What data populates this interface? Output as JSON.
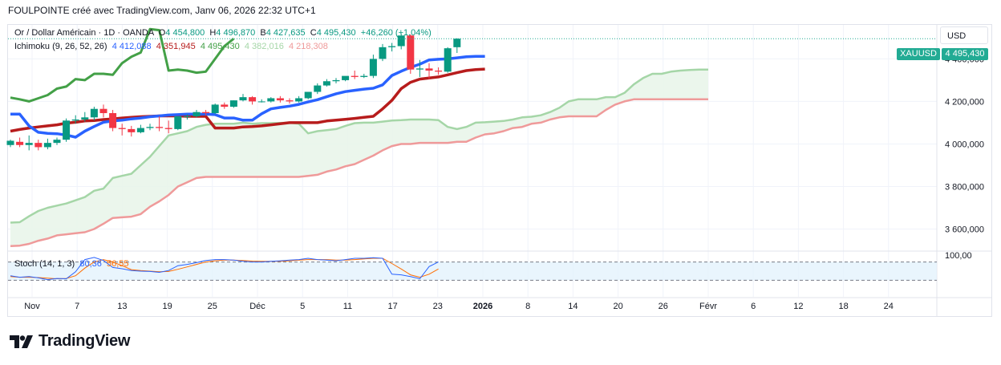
{
  "header": {
    "title": "FOULPOINTE créé avec TradingView.com, Janv 06, 2026 22:32 UTC+1"
  },
  "legend": {
    "symbol": "Or / Dollar Américain · 1D · OANDA",
    "o_label": "O",
    "o_value": "4 454,800",
    "h_label": "H",
    "h_value": "4 496,870",
    "l_label": "B",
    "l_value": "4 427,635",
    "c_label": "C",
    "c_value": "4 495,430",
    "change": "+46,260 (+1,04%)",
    "ichimoku_label": "Ichimoku (9, 26, 52, 26)",
    "ichimoku_values": [
      "4 412,088",
      "4 351,945",
      "4 495,430",
      "4 382,016",
      "4 218,308"
    ],
    "stoch_label": "Stoch (14, 1, 3)",
    "stoch_values": [
      "80,36",
      "56,55"
    ]
  },
  "price_scale": {
    "currency": "USD",
    "symbol_tag": "XAUUSD",
    "last_price": "4 495,430",
    "ticks": [
      "4 400,000",
      "4 200,000",
      "4 000,000",
      "3 800,000",
      "3 600,000"
    ],
    "stoch_tick": "100,00"
  },
  "time_axis": {
    "labels": [
      "Nov",
      "7",
      "13",
      "19",
      "25",
      "Déc",
      "5",
      "11",
      "17",
      "23",
      "2026",
      "8",
      "14",
      "20",
      "26",
      "Févr",
      "6",
      "12",
      "18",
      "24"
    ]
  },
  "brand": {
    "name": "TradingView"
  },
  "colors": {
    "up": "#089981",
    "down": "#f23645",
    "conversion": "#2962ff",
    "base": "#b71c1c",
    "lagging": "#43a047",
    "span_a": "#a5d6a7",
    "span_b": "#ef9a9a",
    "cloud": "#e8f5e9",
    "stoch_k": "#2962ff",
    "stoch_d": "#ff6d00"
  },
  "chart_data": {
    "type": "candlestick",
    "ylim": [
      3500,
      4560
    ],
    "candles": [
      {
        "o": 3995,
        "h": 4020,
        "c": 4015,
        "l": 3985
      },
      {
        "o": 4010,
        "h": 4030,
        "c": 3995,
        "l": 3985
      },
      {
        "o": 3995,
        "h": 4040,
        "c": 4005,
        "l": 3970
      },
      {
        "o": 4005,
        "h": 4020,
        "c": 3985,
        "l": 3970
      },
      {
        "o": 3985,
        "h": 4025,
        "c": 4005,
        "l": 3975
      },
      {
        "o": 4005,
        "h": 4030,
        "c": 4020,
        "l": 3995
      },
      {
        "o": 4020,
        "h": 4120,
        "c": 4110,
        "l": 4010
      },
      {
        "o": 4110,
        "h": 4135,
        "c": 4115,
        "l": 4095
      },
      {
        "o": 4115,
        "h": 4150,
        "c": 4125,
        "l": 4105
      },
      {
        "o": 4125,
        "h": 4175,
        "c": 4165,
        "l": 4110
      },
      {
        "o": 4165,
        "h": 4185,
        "c": 4145,
        "l": 4125
      },
      {
        "o": 4145,
        "h": 4160,
        "c": 4075,
        "l": 4060
      },
      {
        "o": 4075,
        "h": 4095,
        "c": 4070,
        "l": 4040
      },
      {
        "o": 4070,
        "h": 4085,
        "c": 4055,
        "l": 4035
      },
      {
        "o": 4055,
        "h": 4090,
        "c": 4075,
        "l": 4050
      },
      {
        "o": 4075,
        "h": 4095,
        "c": 4080,
        "l": 4065
      },
      {
        "o": 4080,
        "h": 4130,
        "c": 4075,
        "l": 4060
      },
      {
        "o": 4075,
        "h": 4110,
        "c": 4070,
        "l": 4050
      },
      {
        "o": 4070,
        "h": 4120,
        "c": 4130,
        "l": 4065
      },
      {
        "o": 4130,
        "h": 4140,
        "c": 4130,
        "l": 4115
      },
      {
        "o": 4130,
        "h": 4160,
        "c": 4150,
        "l": 4125
      },
      {
        "o": 4150,
        "h": 4160,
        "c": 4145,
        "l": 4135
      },
      {
        "o": 4145,
        "h": 4190,
        "c": 4185,
        "l": 4140
      },
      {
        "o": 4185,
        "h": 4195,
        "c": 4175,
        "l": 4165
      },
      {
        "o": 4175,
        "h": 4205,
        "c": 4205,
        "l": 4170
      },
      {
        "o": 4205,
        "h": 4235,
        "c": 4220,
        "l": 4200
      },
      {
        "o": 4220,
        "h": 4225,
        "c": 4200,
        "l": 4185
      },
      {
        "o": 4200,
        "h": 4210,
        "c": 4200,
        "l": 4195
      },
      {
        "o": 4200,
        "h": 4220,
        "c": 4215,
        "l": 4195
      },
      {
        "o": 4215,
        "h": 4225,
        "c": 4205,
        "l": 4195
      },
      {
        "o": 4205,
        "h": 4215,
        "c": 4200,
        "l": 4190
      },
      {
        "o": 4200,
        "h": 4225,
        "c": 4215,
        "l": 4195
      },
      {
        "o": 4215,
        "h": 4245,
        "c": 4245,
        "l": 4210
      },
      {
        "o": 4245,
        "h": 4285,
        "c": 4275,
        "l": 4235
      },
      {
        "o": 4275,
        "h": 4305,
        "c": 4295,
        "l": 4270
      },
      {
        "o": 4295,
        "h": 4310,
        "c": 4300,
        "l": 4285
      },
      {
        "o": 4300,
        "h": 4310,
        "c": 4320,
        "l": 4295
      },
      {
        "o": 4320,
        "h": 4345,
        "c": 4315,
        "l": 4305
      },
      {
        "o": 4315,
        "h": 4330,
        "c": 4320,
        "l": 4310
      },
      {
        "o": 4320,
        "h": 4420,
        "c": 4400,
        "l": 4310
      },
      {
        "o": 4400,
        "h": 4470,
        "c": 4455,
        "l": 4390
      },
      {
        "o": 4455,
        "h": 4475,
        "c": 4460,
        "l": 4435
      },
      {
        "o": 4460,
        "h": 4520,
        "c": 4510,
        "l": 4445
      },
      {
        "o": 4510,
        "h": 4515,
        "c": 4350,
        "l": 4330
      },
      {
        "o": 4350,
        "h": 4395,
        "c": 4355,
        "l": 4315
      },
      {
        "o": 4355,
        "h": 4380,
        "c": 4345,
        "l": 4305
      },
      {
        "o": 4345,
        "h": 4360,
        "c": 4340,
        "l": 4325
      },
      {
        "o": 4340,
        "h": 4455,
        "c": 4450,
        "l": 4335
      },
      {
        "o": 4455,
        "h": 4497,
        "c": 4495,
        "l": 4428
      }
    ],
    "conversion_line": [
      4140,
      4140,
      4085,
      4055,
      4050,
      4048,
      4042,
      4032,
      4060,
      4082,
      4102,
      4108,
      4112,
      4118,
      4122,
      4128,
      4132,
      4136,
      4138,
      4140,
      4140,
      4140,
      4138,
      4122,
      4122,
      4112,
      4112,
      4142,
      4165,
      4172,
      4178,
      4186,
      4198,
      4208,
      4222,
      4236,
      4246,
      4252,
      4258,
      4262,
      4278,
      4322,
      4342,
      4360,
      4375,
      4395,
      4398,
      4400,
      4405,
      4410,
      4412,
      4412
    ],
    "base_line": [
      4060,
      4068,
      4075,
      4080,
      4085,
      4090,
      4098,
      4102,
      4108,
      4110,
      4115,
      4118,
      4122,
      4125,
      4128,
      4130,
      4132,
      4132,
      4132,
      4130,
      4130,
      4130,
      4075,
      4075,
      4075,
      4080,
      4082,
      4085,
      4090,
      4095,
      4100,
      4100,
      4100,
      4100,
      4108,
      4112,
      4116,
      4120,
      4125,
      4130,
      4165,
      4205,
      4260,
      4290,
      4305,
      4310,
      4315,
      4325,
      4335,
      4345,
      4350,
      4352
    ],
    "lagging_span": [
      4218,
      4210,
      4200,
      4215,
      4230,
      4260,
      4270,
      4305,
      4300,
      4330,
      4330,
      4325,
      4380,
      4410,
      4430,
      4540,
      4535,
      4345,
      4350,
      4345,
      4335,
      4340,
      4400,
      4460,
      4495
    ],
    "span_a": [
      3630,
      3632,
      3660,
      3685,
      3700,
      3710,
      3720,
      3735,
      3750,
      3780,
      3790,
      3840,
      3850,
      3860,
      3900,
      3940,
      3990,
      4040,
      4050,
      4060,
      4080,
      4090,
      4095,
      4095,
      4095,
      4100,
      4095,
      4098,
      4098,
      4099,
      4100,
      4095,
      4050,
      4060,
      4065,
      4070,
      4085,
      4098,
      4100,
      4100,
      4105,
      4110,
      4112,
      4115,
      4115,
      4115,
      4112,
      4080,
      4070,
      4080,
      4100,
      4102,
      4105,
      4108,
      4115,
      4125,
      4128,
      4135,
      4150,
      4170,
      4200,
      4210,
      4210,
      4210,
      4220,
      4220,
      4240,
      4280,
      4310,
      4330,
      4330,
      4340,
      4345,
      4348,
      4350,
      4350
    ],
    "span_b": [
      3520,
      3522,
      3530,
      3545,
      3555,
      3570,
      3575,
      3580,
      3585,
      3600,
      3625,
      3652,
      3655,
      3658,
      3670,
      3705,
      3730,
      3760,
      3800,
      3820,
      3840,
      3845,
      3845,
      3845,
      3845,
      3845,
      3845,
      3845,
      3845,
      3845,
      3845,
      3845,
      3850,
      3855,
      3870,
      3880,
      3895,
      3905,
      3925,
      3945,
      3970,
      3990,
      4000,
      4000,
      4005,
      4005,
      4005,
      4005,
      4010,
      4010,
      4030,
      4045,
      4050,
      4060,
      4075,
      4080,
      4095,
      4100,
      4115,
      4125,
      4130,
      4130,
      4130,
      4130,
      4160,
      4185,
      4200,
      4210,
      4210,
      4210,
      4210,
      4210,
      4210,
      4210,
      4210,
      4210
    ],
    "stoch": {
      "ylim": [
        0,
        100
      ],
      "upper_band": 80,
      "lower_band": 20,
      "k": [
        35,
        30,
        32,
        28,
        22,
        26,
        25,
        48,
        88,
        95,
        85,
        62,
        58,
        52,
        50,
        49,
        46,
        52,
        68,
        72,
        78,
        85,
        88,
        88,
        86,
        82,
        80,
        80,
        82,
        84,
        86,
        88,
        92,
        88,
        86,
        84,
        88,
        92,
        92,
        94,
        92,
        40,
        38,
        32,
        25,
        65,
        80
      ],
      "d": [
        32,
        30,
        30,
        29,
        27,
        25,
        26,
        35,
        60,
        80,
        88,
        80,
        68,
        55,
        52,
        50,
        48,
        49,
        56,
        64,
        72,
        80,
        84,
        86,
        86,
        85,
        83,
        82,
        82,
        82,
        84,
        86,
        88,
        88,
        88,
        86,
        86,
        88,
        90,
        92,
        92,
        75,
        57,
        38,
        30,
        40,
        57
      ]
    }
  }
}
